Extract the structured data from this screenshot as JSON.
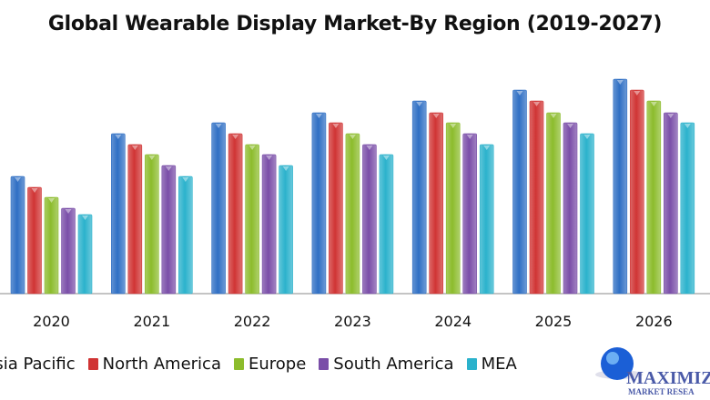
{
  "chart_data": {
    "type": "bar",
    "title": "Global Wearable Display Market-By Region (2019-2027)",
    "xlabel": "",
    "ylabel": "",
    "categories": [
      "2020",
      "2021",
      "2022",
      "2023",
      "2024",
      "2025",
      "2026"
    ],
    "series": [
      {
        "name": "Asia Pacific",
        "color": "#2f6fc4",
        "values": [
          129,
          176,
          188,
          199,
          212,
          224,
          236
        ]
      },
      {
        "name": "North America",
        "color": "#d03434",
        "values": [
          117,
          164,
          176,
          188,
          199,
          212,
          224
        ]
      },
      {
        "name": "Europe",
        "color": "#8cbc2c",
        "values": [
          106,
          153,
          164,
          176,
          188,
          199,
          212
        ]
      },
      {
        "name": "South America",
        "color": "#7a4ea8",
        "values": [
          94,
          141,
          153,
          164,
          176,
          188,
          199
        ]
      },
      {
        "name": "MEA",
        "color": "#2bb2cc",
        "values": [
          87,
          129,
          141,
          153,
          164,
          176,
          188
        ]
      }
    ],
    "ylim": [
      0,
      236
    ],
    "grid": false,
    "legend": "bottom"
  },
  "logo": {
    "text": "MAXIMIZE",
    "subtext": "MARKET RESEARCH"
  }
}
